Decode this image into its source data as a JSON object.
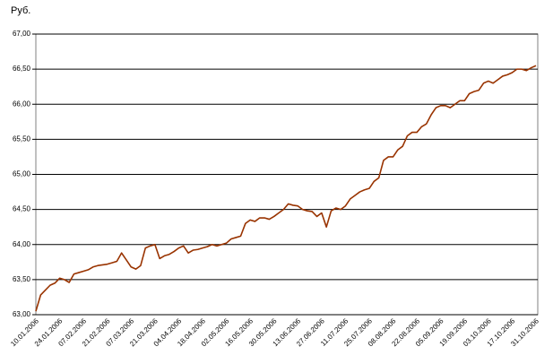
{
  "chart_data": {
    "type": "line",
    "y_label": "Руб.",
    "categories": [
      "10.01.2006",
      null,
      null,
      null,
      null,
      "24.01.2006",
      null,
      null,
      null,
      null,
      "07.02.2006",
      null,
      null,
      null,
      null,
      "21.02.2006",
      null,
      null,
      null,
      null,
      "07.03.2006",
      null,
      null,
      null,
      null,
      "21.03.2006",
      null,
      null,
      null,
      null,
      "04.04.2006",
      null,
      null,
      null,
      null,
      "18.04.2006",
      null,
      null,
      null,
      null,
      "02.05.2006",
      null,
      null,
      null,
      null,
      "16.05.2006",
      null,
      null,
      null,
      null,
      "30.05.2006",
      null,
      null,
      null,
      null,
      "13.06.2006",
      null,
      null,
      null,
      null,
      "27.06.2006",
      null,
      null,
      null,
      null,
      "11.07.2006",
      null,
      null,
      null,
      null,
      "25.07.2006",
      null,
      null,
      null,
      null,
      "08.08.2006",
      null,
      null,
      null,
      null,
      "22.08.2006",
      null,
      null,
      null,
      null,
      "05.09.2006",
      null,
      null,
      null,
      null,
      "19.09.2006",
      null,
      null,
      null,
      null,
      "03.10.2006",
      null,
      null,
      null,
      null,
      "17.10.2006",
      null,
      null,
      null,
      null,
      "31.10.2006"
    ],
    "series": [
      {
        "color": "#993300",
        "values": [
          63.05,
          63.28,
          63.35,
          63.42,
          63.45,
          63.52,
          63.5,
          63.46,
          63.58,
          63.6,
          63.62,
          63.64,
          63.68,
          63.7,
          63.71,
          63.72,
          63.74,
          63.76,
          63.88,
          63.78,
          63.68,
          63.65,
          63.7,
          63.95,
          63.98,
          64.0,
          63.8,
          63.84,
          63.86,
          63.9,
          63.95,
          63.98,
          63.88,
          63.92,
          63.93,
          63.95,
          63.97,
          64.0,
          63.98,
          64.0,
          64.02,
          64.08,
          64.1,
          64.12,
          64.3,
          64.35,
          64.33,
          64.38,
          64.38,
          64.36,
          64.4,
          64.45,
          64.5,
          64.58,
          64.56,
          64.55,
          64.5,
          64.48,
          64.47,
          64.4,
          64.45,
          64.25,
          64.48,
          64.52,
          64.5,
          64.55,
          64.65,
          64.7,
          64.75,
          64.78,
          64.8,
          64.9,
          64.95,
          65.2,
          65.25,
          65.25,
          65.35,
          65.4,
          65.55,
          65.6,
          65.6,
          65.68,
          65.72,
          65.85,
          65.95,
          65.98,
          65.98,
          65.95,
          66.0,
          66.05,
          66.05,
          66.15,
          66.18,
          66.2,
          66.3,
          66.33,
          66.3,
          66.35,
          66.4,
          66.42,
          66.45,
          66.5,
          66.5,
          66.48,
          66.52,
          66.55
        ]
      }
    ],
    "ylim": [
      63,
      67
    ],
    "yticks": [
      {
        "value": 63,
        "label": "63,00"
      },
      {
        "value": 63.5,
        "label": "63,50"
      },
      {
        "value": 64,
        "label": "64,00"
      },
      {
        "value": 64.5,
        "label": "64,50"
      },
      {
        "value": 65,
        "label": "65,00"
      },
      {
        "value": 65.5,
        "label": "65,50"
      },
      {
        "value": 66,
        "label": "66,00"
      },
      {
        "value": 66.5,
        "label": "66,50"
      },
      {
        "value": 67,
        "label": "67,00"
      }
    ],
    "grid": true
  }
}
